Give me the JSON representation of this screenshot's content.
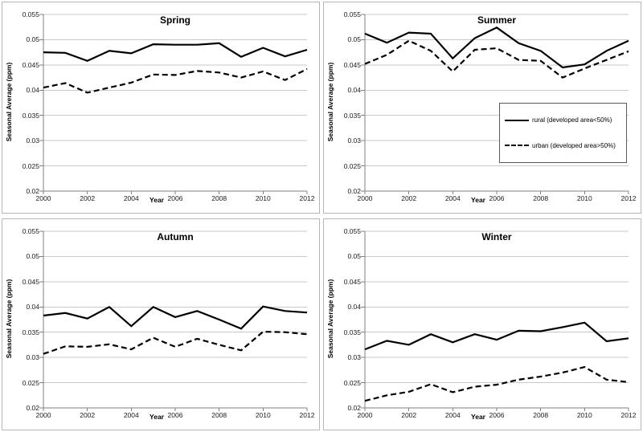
{
  "figure": {
    "background": "#ffffff",
    "panel_border_color": "#b7b7b7",
    "grid_color": "#c9c9c9",
    "axis_color": "#808080",
    "line_color": "#000000"
  },
  "legend": {
    "location": "summer-panel-middle-right",
    "entries": [
      {
        "name": "rural",
        "label": "rural (developed area<50%)",
        "line_style": "solid"
      },
      {
        "name": "urban",
        "label": "urban (developed area>50%)",
        "line_style": "dashed"
      }
    ]
  },
  "chart_data": [
    {
      "type": "line",
      "title": "Spring",
      "xlabel": "Year",
      "ylabel": "Seasonal Average (ppm)",
      "x": [
        2000,
        2001,
        2002,
        2003,
        2004,
        2005,
        2006,
        2007,
        2008,
        2009,
        2010,
        2011,
        2012
      ],
      "xticks": [
        2000,
        2002,
        2004,
        2006,
        2008,
        2010,
        2012
      ],
      "xtick_labels": [
        "2000",
        "2002",
        "2004",
        "2006",
        "2008",
        "2010",
        "2012"
      ],
      "ylim": [
        0.02,
        0.055
      ],
      "yticks": [
        0.02,
        0.025,
        0.03,
        0.035,
        0.04,
        0.045,
        0.05,
        0.055
      ],
      "ytick_labels": [
        "0.02",
        "0.025",
        "0.03",
        "0.035",
        "0.04",
        "0.045",
        "0.05",
        "0.055"
      ],
      "grid": "horizontal",
      "legend_visible": false,
      "series": [
        {
          "name": "rural (developed area<50%)",
          "style": "solid",
          "values": [
            0.0475,
            0.0474,
            0.0458,
            0.0478,
            0.0473,
            0.0491,
            0.049,
            0.049,
            0.0493,
            0.0466,
            0.0484,
            0.0467,
            0.048
          ]
        },
        {
          "name": "urban (developed area>50%)",
          "style": "dashed",
          "values": [
            0.0405,
            0.0414,
            0.0395,
            0.0405,
            0.0415,
            0.0431,
            0.043,
            0.0438,
            0.0435,
            0.0425,
            0.0437,
            0.042,
            0.0442
          ]
        }
      ]
    },
    {
      "type": "line",
      "title": "Summer",
      "xlabel": "Year",
      "ylabel": "Seasonal Average (ppm)",
      "x": [
        2000,
        2001,
        2002,
        2003,
        2004,
        2005,
        2006,
        2007,
        2008,
        2009,
        2010,
        2011,
        2012
      ],
      "xticks": [
        2000,
        2002,
        2004,
        2006,
        2008,
        2010,
        2012
      ],
      "xtick_labels": [
        "2000",
        "2002",
        "2004",
        "2006",
        "2008",
        "2010",
        "2012"
      ],
      "ylim": [
        0.02,
        0.055
      ],
      "yticks": [
        0.02,
        0.025,
        0.03,
        0.035,
        0.04,
        0.045,
        0.05,
        0.055
      ],
      "ytick_labels": [
        "0.02",
        "0.025",
        "0.03",
        "0.035",
        "0.04",
        "0.045",
        "0.05",
        "0.055"
      ],
      "grid": "horizontal",
      "legend_visible": true,
      "series": [
        {
          "name": "rural (developed area<50%)",
          "style": "solid",
          "values": [
            0.0512,
            0.0494,
            0.0514,
            0.0512,
            0.0463,
            0.0503,
            0.0524,
            0.0493,
            0.0478,
            0.0445,
            0.0451,
            0.0478,
            0.0498
          ]
        },
        {
          "name": "urban (developed area>50%)",
          "style": "dashed",
          "values": [
            0.0452,
            0.047,
            0.0498,
            0.0478,
            0.0437,
            0.048,
            0.0483,
            0.046,
            0.0458,
            0.0425,
            0.0443,
            0.046,
            0.0477
          ]
        }
      ]
    },
    {
      "type": "line",
      "title": "Autumn",
      "xlabel": "Year",
      "ylabel": "Seasonal Average (ppm)",
      "x": [
        2000,
        2001,
        2002,
        2003,
        2004,
        2005,
        2006,
        2007,
        2008,
        2009,
        2010,
        2011,
        2012
      ],
      "xticks": [
        2000,
        2002,
        2004,
        2006,
        2008,
        2010,
        2012
      ],
      "xtick_labels": [
        "2000",
        "2002",
        "2004",
        "2006",
        "2008",
        "2010",
        "2012"
      ],
      "ylim": [
        0.02,
        0.055
      ],
      "yticks": [
        0.02,
        0.025,
        0.03,
        0.035,
        0.04,
        0.045,
        0.05,
        0.055
      ],
      "ytick_labels": [
        "0.02",
        "0.025",
        "0.03",
        "0.035",
        "0.04",
        "0.045",
        "0.05",
        "0.055"
      ],
      "grid": "horizontal",
      "legend_visible": false,
      "series": [
        {
          "name": "rural (developed area<50%)",
          "style": "solid",
          "values": [
            0.0383,
            0.0388,
            0.0377,
            0.04,
            0.0362,
            0.04,
            0.038,
            0.0392,
            0.0375,
            0.0357,
            0.0401,
            0.0392,
            0.0389
          ]
        },
        {
          "name": "urban (developed area>50%)",
          "style": "dashed",
          "values": [
            0.0307,
            0.0322,
            0.0321,
            0.0326,
            0.0316,
            0.0339,
            0.0321,
            0.0337,
            0.0325,
            0.0314,
            0.0351,
            0.035,
            0.0346
          ]
        }
      ]
    },
    {
      "type": "line",
      "title": "Winter",
      "xlabel": "Year",
      "ylabel": "Seasonal Average (ppm)",
      "x": [
        2000,
        2001,
        2002,
        2003,
        2004,
        2005,
        2006,
        2007,
        2008,
        2009,
        2010,
        2011,
        2012
      ],
      "xticks": [
        2000,
        2002,
        2004,
        2006,
        2008,
        2010,
        2012
      ],
      "xtick_labels": [
        "2000",
        "2002",
        "2004",
        "2006",
        "2008",
        "2010",
        "2012"
      ],
      "ylim": [
        0.02,
        0.055
      ],
      "yticks": [
        0.02,
        0.025,
        0.03,
        0.035,
        0.04,
        0.045,
        0.05,
        0.055
      ],
      "ytick_labels": [
        "0.02",
        "0.025",
        "0.03",
        "0.035",
        "0.04",
        "0.045",
        "0.05",
        "0.055"
      ],
      "grid": "horizontal",
      "legend_visible": false,
      "series": [
        {
          "name": "rural (developed area<50%)",
          "style": "solid",
          "values": [
            0.0316,
            0.0333,
            0.0325,
            0.0346,
            0.033,
            0.0346,
            0.0335,
            0.0353,
            0.0352,
            0.036,
            0.0369,
            0.0332,
            0.0338
          ]
        },
        {
          "name": "urban (developed area>50%)",
          "style": "dashed",
          "values": [
            0.0214,
            0.0225,
            0.0232,
            0.0247,
            0.0231,
            0.0242,
            0.0246,
            0.0256,
            0.0262,
            0.027,
            0.0281,
            0.0256,
            0.0251
          ]
        }
      ]
    }
  ]
}
